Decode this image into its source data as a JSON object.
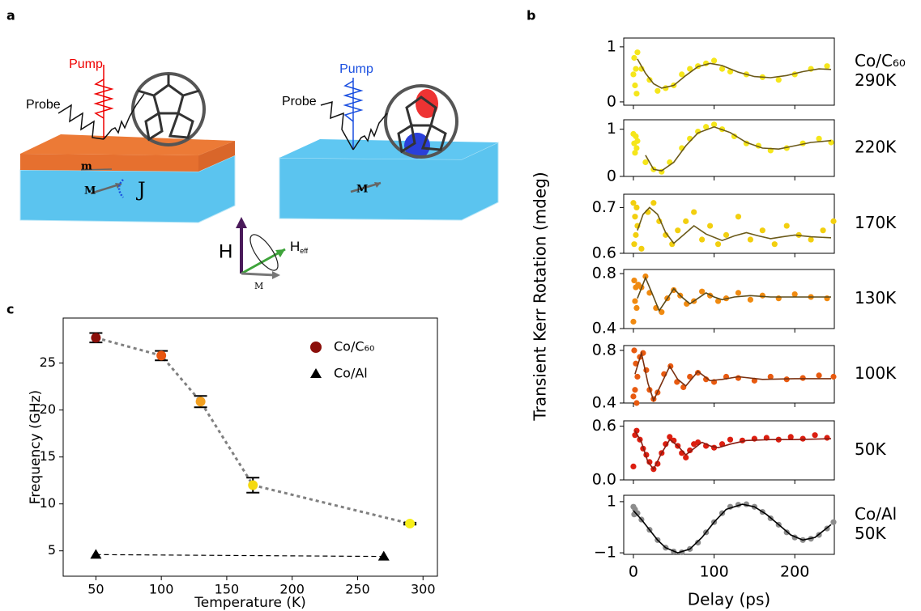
{
  "panel_labels": [
    "a",
    "b",
    "c"
  ],
  "illustration": {
    "left": {
      "pump": "Pump",
      "probe": "Probe",
      "m": "m",
      "M": "M",
      "J": "J"
    },
    "right": {
      "pump": "Pump",
      "probe": "Probe",
      "M": "M"
    },
    "vector_diagram": {
      "H": "H",
      "Heff": "H",
      "Heff_sub": "eff",
      "M": "M"
    }
  },
  "chart_data": [
    {
      "type": "scatter",
      "label": [
        "Co/C₆₀",
        "290K"
      ],
      "xlim": [
        -12,
        249
      ],
      "ylim": [
        -0.06,
        1.16
      ],
      "yticks": [
        0,
        1
      ],
      "series": [
        {
          "marker": "circle",
          "color": "#f5e61b",
          "x": [
            0,
            1,
            2,
            3,
            4,
            5,
            10,
            20,
            30,
            40,
            50,
            60,
            70,
            80,
            90,
            100,
            110,
            120,
            140,
            160,
            180,
            200,
            220,
            240
          ],
          "values": [
            0.5,
            0.8,
            0.3,
            0.6,
            0.15,
            0.9,
            0.6,
            0.4,
            0.2,
            0.25,
            0.3,
            0.5,
            0.6,
            0.65,
            0.7,
            0.75,
            0.6,
            0.55,
            0.5,
            0.45,
            0.4,
            0.5,
            0.6,
            0.65
          ]
        },
        {
          "line_style": "solid",
          "color": "#6b5a1a",
          "x": [
            5,
            15,
            25,
            35,
            50,
            65,
            80,
            95,
            110,
            130,
            150,
            170,
            190,
            210,
            230,
            245
          ],
          "values": [
            0.78,
            0.52,
            0.33,
            0.25,
            0.3,
            0.48,
            0.64,
            0.7,
            0.66,
            0.54,
            0.46,
            0.44,
            0.48,
            0.55,
            0.6,
            0.59
          ]
        }
      ]
    },
    {
      "type": "scatter",
      "label": [
        "220K"
      ],
      "xlim": [
        -12,
        249
      ],
      "ylim": [
        0,
        1.2
      ],
      "yticks": [
        0,
        1
      ],
      "series": [
        {
          "marker": "circle",
          "color": "#f5e61b",
          "x": [
            0,
            1,
            2,
            3,
            4,
            5,
            15,
            25,
            35,
            45,
            60,
            70,
            80,
            90,
            100,
            110,
            125,
            140,
            155,
            170,
            190,
            210,
            230,
            245
          ],
          "values": [
            0.9,
            0.7,
            0.5,
            0.85,
            0.6,
            0.75,
            0.3,
            0.15,
            0.1,
            0.3,
            0.6,
            0.8,
            0.95,
            1.05,
            1.1,
            1.0,
            0.85,
            0.7,
            0.65,
            0.55,
            0.6,
            0.7,
            0.8,
            0.72
          ]
        },
        {
          "line_style": "solid",
          "color": "#6b5a1a",
          "x": [
            15,
            25,
            35,
            50,
            65,
            80,
            100,
            120,
            140,
            160,
            180,
            200,
            220,
            245
          ],
          "values": [
            0.45,
            0.15,
            0.12,
            0.3,
            0.65,
            0.92,
            1.05,
            0.93,
            0.72,
            0.6,
            0.58,
            0.65,
            0.72,
            0.76
          ]
        }
      ]
    },
    {
      "type": "scatter",
      "label": [
        "170K"
      ],
      "xlim": [
        -12,
        249
      ],
      "ylim": [
        0.6,
        0.729
      ],
      "yticks": [
        0.6,
        0.7
      ],
      "series": [
        {
          "marker": "circle",
          "color": "#f2cf0f",
          "x": [
            0,
            1,
            2,
            3,
            4,
            5,
            10,
            18,
            25,
            32,
            40,
            48,
            55,
            65,
            75,
            85,
            95,
            105,
            115,
            130,
            145,
            160,
            175,
            190,
            205,
            220,
            235,
            248
          ],
          "values": [
            0.71,
            0.62,
            0.68,
            0.64,
            0.7,
            0.66,
            0.61,
            0.69,
            0.71,
            0.67,
            0.64,
            0.62,
            0.65,
            0.67,
            0.69,
            0.63,
            0.66,
            0.62,
            0.64,
            0.68,
            0.63,
            0.65,
            0.62,
            0.66,
            0.64,
            0.63,
            0.65,
            0.67
          ]
        },
        {
          "line_style": "solid",
          "color": "#6b5a1a",
          "x": [
            5,
            12,
            20,
            30,
            40,
            50,
            62,
            75,
            90,
            110,
            125,
            140,
            155,
            170,
            185,
            200,
            220,
            245
          ],
          "values": [
            0.65,
            0.685,
            0.7,
            0.685,
            0.645,
            0.622,
            0.64,
            0.66,
            0.642,
            0.628,
            0.638,
            0.645,
            0.638,
            0.632,
            0.636,
            0.64,
            0.636,
            0.634
          ]
        }
      ]
    },
    {
      "type": "scatter",
      "label": [
        "130K"
      ],
      "xlim": [
        -12,
        249
      ],
      "ylim": [
        0.4,
        0.83
      ],
      "yticks": [
        0.4,
        0.8
      ],
      "series": [
        {
          "marker": "circle",
          "color": "#f08a10",
          "x": [
            0,
            1,
            2,
            3,
            4,
            6,
            10,
            15,
            20,
            28,
            35,
            42,
            50,
            58,
            66,
            75,
            85,
            95,
            105,
            115,
            130,
            145,
            160,
            180,
            200,
            220,
            240
          ],
          "values": [
            0.45,
            0.75,
            0.6,
            0.7,
            0.55,
            0.72,
            0.7,
            0.78,
            0.66,
            0.55,
            0.52,
            0.62,
            0.68,
            0.64,
            0.58,
            0.6,
            0.67,
            0.64,
            0.6,
            0.62,
            0.66,
            0.61,
            0.64,
            0.62,
            0.65,
            0.63,
            0.62
          ]
        },
        {
          "line_style": "solid",
          "color": "#5a4a1a",
          "x": [
            5,
            15,
            25,
            32,
            40,
            50,
            60,
            70,
            80,
            90,
            100,
            110,
            125,
            145,
            170,
            200,
            245
          ],
          "values": [
            0.62,
            0.77,
            0.63,
            0.53,
            0.6,
            0.69,
            0.63,
            0.58,
            0.62,
            0.66,
            0.63,
            0.61,
            0.63,
            0.64,
            0.63,
            0.63,
            0.63
          ]
        }
      ]
    },
    {
      "type": "scatter",
      "label": [
        "100K"
      ],
      "xlim": [
        -12,
        249
      ],
      "ylim": [
        0.4,
        0.837
      ],
      "yticks": [
        0.4,
        0.8
      ],
      "series": [
        {
          "marker": "circle",
          "color": "#e85a10",
          "x": [
            0,
            1,
            2,
            3,
            4,
            5,
            8,
            12,
            16,
            20,
            25,
            30,
            38,
            46,
            54,
            62,
            70,
            80,
            90,
            100,
            115,
            130,
            150,
            170,
            190,
            210,
            230,
            248
          ],
          "values": [
            0.45,
            0.8,
            0.5,
            0.7,
            0.4,
            0.6,
            0.75,
            0.78,
            0.65,
            0.5,
            0.43,
            0.48,
            0.62,
            0.68,
            0.56,
            0.52,
            0.6,
            0.63,
            0.58,
            0.56,
            0.6,
            0.59,
            0.57,
            0.6,
            0.58,
            0.59,
            0.61,
            0.6
          ]
        },
        {
          "line_style": "solid",
          "color": "#7a3010",
          "x": [
            2,
            10,
            18,
            25,
            35,
            45,
            55,
            65,
            80,
            95,
            110,
            130,
            160,
            200,
            245
          ],
          "values": [
            0.62,
            0.78,
            0.55,
            0.42,
            0.55,
            0.68,
            0.58,
            0.53,
            0.64,
            0.57,
            0.58,
            0.6,
            0.58,
            0.585,
            0.585
          ]
        }
      ]
    },
    {
      "type": "scatter",
      "label": [
        "50K"
      ],
      "xlim": [
        -12,
        249
      ],
      "ylim": [
        0,
        0.66
      ],
      "yticks": [
        {
          "value": 0,
          "label": "0.0"
        },
        0.6
      ],
      "series": [
        {
          "marker": "circle",
          "color": "#dc1e10",
          "x": [
            0,
            2,
            4,
            8,
            12,
            16,
            20,
            25,
            30,
            35,
            40,
            45,
            50,
            55,
            60,
            65,
            70,
            75,
            80,
            90,
            100,
            110,
            120,
            135,
            150,
            165,
            180,
            195,
            210,
            225,
            240
          ],
          "values": [
            0.15,
            0.5,
            0.55,
            0.45,
            0.35,
            0.28,
            0.2,
            0.12,
            0.18,
            0.3,
            0.4,
            0.48,
            0.44,
            0.38,
            0.3,
            0.25,
            0.33,
            0.4,
            0.42,
            0.38,
            0.36,
            0.4,
            0.45,
            0.44,
            0.46,
            0.47,
            0.45,
            0.48,
            0.46,
            0.5,
            0.47
          ]
        },
        {
          "line_style": "solid",
          "color": "#8a1a10",
          "x": [
            2,
            10,
            18,
            25,
            35,
            45,
            55,
            65,
            75,
            85,
            95,
            105,
            120,
            140,
            170,
            200,
            245
          ],
          "values": [
            0.55,
            0.42,
            0.2,
            0.12,
            0.3,
            0.45,
            0.38,
            0.28,
            0.35,
            0.42,
            0.38,
            0.36,
            0.4,
            0.44,
            0.45,
            0.45,
            0.46
          ]
        }
      ]
    },
    {
      "type": "scatter",
      "label": [
        "Co/Al",
        "50K"
      ],
      "xlim": [
        -12,
        249
      ],
      "ylim": [
        -1.06,
        1.25
      ],
      "yticks": [
        {
          "value": -1,
          "label": "−1"
        },
        1
      ],
      "xticks": [
        0,
        100,
        200
      ],
      "xlabel": "Delay (ps)",
      "ylabel": "Transient Kerr Rotation (mdeg)",
      "series": [
        {
          "marker": "circle",
          "color": "#8c8c8c",
          "x": [
            0,
            1,
            2,
            5,
            10,
            20,
            30,
            40,
            50,
            60,
            70,
            80,
            90,
            100,
            110,
            120,
            130,
            140,
            150,
            160,
            170,
            180,
            190,
            200,
            210,
            220,
            230,
            240,
            248
          ],
          "values": [
            0.8,
            0.5,
            0.7,
            0.55,
            0.3,
            -0.1,
            -0.5,
            -0.8,
            -0.95,
            -0.98,
            -0.85,
            -0.6,
            -0.2,
            0.2,
            0.55,
            0.8,
            0.88,
            0.9,
            0.8,
            0.6,
            0.35,
            0.1,
            -0.2,
            -0.4,
            -0.5,
            -0.45,
            -0.3,
            -0.05,
            0.2
          ]
        },
        {
          "line_style": "solid",
          "color": "#000000",
          "x": [
            0,
            10,
            20,
            30,
            40,
            55,
            70,
            85,
            100,
            115,
            135,
            150,
            165,
            180,
            195,
            210,
            225,
            245
          ],
          "values": [
            0.65,
            0.3,
            -0.1,
            -0.5,
            -0.8,
            -1.0,
            -0.85,
            -0.4,
            0.2,
            0.7,
            0.9,
            0.8,
            0.5,
            0.1,
            -0.3,
            -0.5,
            -0.4,
            0.1
          ]
        }
      ]
    },
    {
      "type": "scatter",
      "xlabel": "Temperature (K)",
      "ylabel": "Frequency (GHz)",
      "xlim": [
        25,
        311
      ],
      "ylim": [
        2.3,
        29.8
      ],
      "xticks": [
        50,
        100,
        150,
        200,
        250,
        300
      ],
      "yticks": [
        5,
        10,
        15,
        20,
        25
      ],
      "legend": "upper right",
      "series": [
        {
          "name": "Co/C₆₀",
          "marker": "circle",
          "color": "#8b0f0a",
          "line_style": "dotted",
          "line_color": "#808080",
          "point_colors": [
            "#8b0f0a",
            "#e8550f",
            "#f2a020",
            "#f5d90f",
            "#f7ef1a"
          ],
          "x": [
            50,
            100,
            130,
            170,
            290
          ],
          "values": [
            27.7,
            25.8,
            20.9,
            12.0,
            7.9
          ],
          "errors": [
            0.5,
            0.5,
            0.6,
            0.8,
            0.1
          ]
        },
        {
          "name": "Co/Al",
          "marker": "triangle",
          "color": "#000000",
          "line_style": "dashed",
          "line_color": "#000000",
          "x": [
            50,
            270
          ],
          "values": [
            4.6,
            4.4
          ]
        }
      ]
    }
  ]
}
